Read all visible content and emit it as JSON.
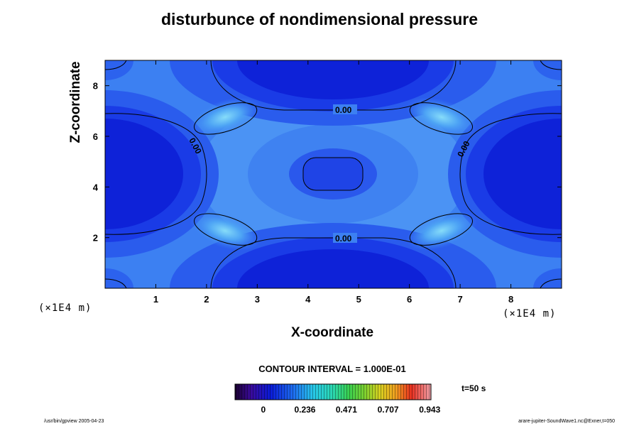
{
  "chart_data": {
    "type": "heatmap",
    "subtype": "filled-contour",
    "title": "disturbunce of nondimensional pressure",
    "xlabel": "X-coordinate",
    "ylabel": "Z-coordinate",
    "x_unit": "(×1E4 m)",
    "y_unit": "(×1E4 m)",
    "xlim": [
      0,
      9
    ],
    "ylim": [
      0,
      9
    ],
    "x_ticks": [
      1,
      2,
      3,
      4,
      5,
      6,
      7,
      8
    ],
    "y_ticks": [
      2,
      4,
      6,
      8
    ],
    "contour_interval_text": "CONTOUR INTERVAL = 1.000E-01",
    "contour_labels": [
      "0.00",
      "0.00",
      "0.00",
      "0.00"
    ],
    "colorbar_ticks": [
      "0",
      "0.236",
      "0.471",
      "0.707",
      "0.943"
    ],
    "time_label": "t=50 s",
    "colors": {
      "deep_blue": "#0a1ad8",
      "mid_blue": "#2255f0",
      "light_blue": "#4a9bf4",
      "cyan_peak": "#7fd6f8"
    }
  },
  "footer": {
    "left": "/usr/bin/gpview 2005-04-23",
    "right": "arare-jupiter-SoundWave1.nc@Exner,t=050"
  }
}
